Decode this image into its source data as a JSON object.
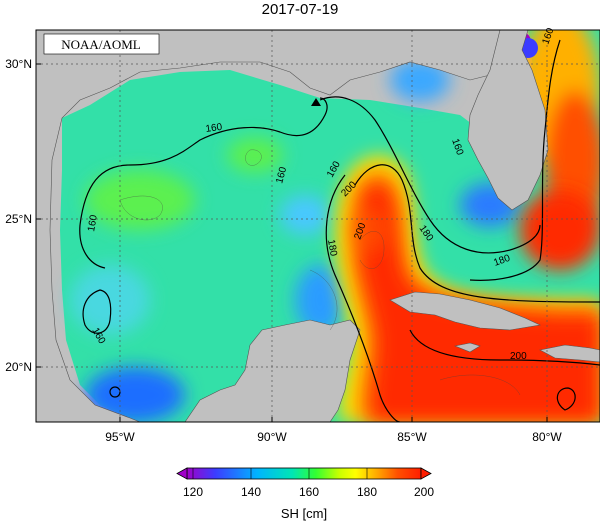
{
  "title": "2017-07-19",
  "credit": "NOAA/AOML",
  "axes": {
    "lat_labels": [
      "30°N",
      "25°N",
      "20°N"
    ],
    "lon_labels": [
      "95°W",
      "90°W",
      "85°W",
      "80°W"
    ]
  },
  "contour_labels": [
    "160",
    "160",
    "160",
    "160",
    "160",
    "160",
    "180",
    "180",
    "180",
    "200",
    "200",
    "200",
    "160"
  ],
  "colorbar": {
    "ticks": [
      "120",
      "140",
      "160",
      "180",
      "200"
    ],
    "label": "SH [cm]",
    "colors": [
      "#a000c8",
      "#3c3cff",
      "#00b4ff",
      "#00e6b4",
      "#32ff32",
      "#c8ff00",
      "#ffff00",
      "#ffa000",
      "#ff5000",
      "#ff1e00"
    ]
  },
  "colors": {
    "land": "#c0c0c0",
    "gulf_low": "#1e6eff",
    "gulf_mid": "#33e0a8",
    "loop_current": "#ff2a00"
  }
}
